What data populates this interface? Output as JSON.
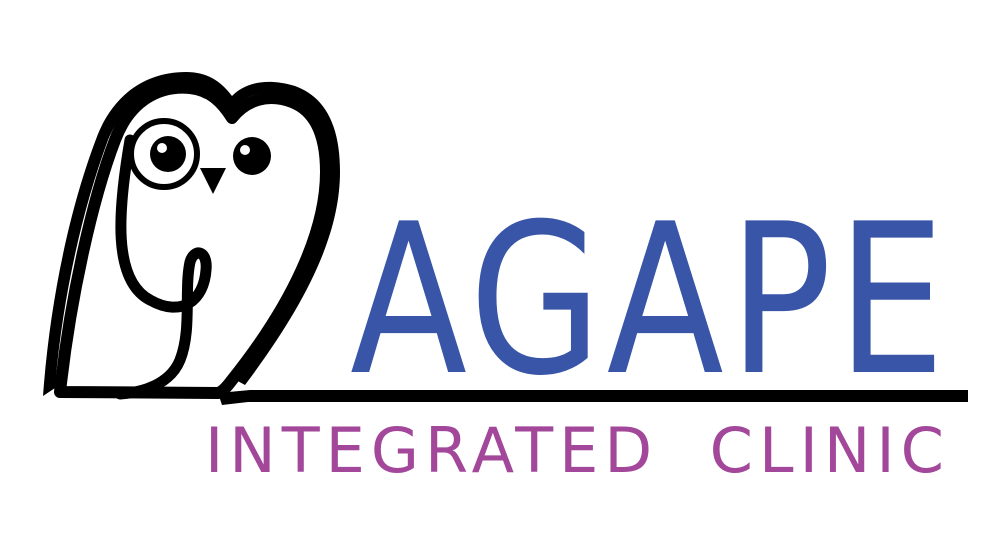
{
  "logo": {
    "brand": "AGAPE",
    "tagline": "INTEGRATED  CLINIC",
    "mascot_icon": "owl-icon"
  },
  "colors": {
    "brand": "#3955a8",
    "tagline": "#a2479a",
    "outline": "#000000",
    "background": "#ffffff"
  }
}
